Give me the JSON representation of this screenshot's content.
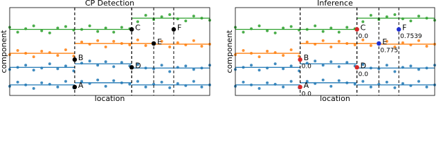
{
  "chart_data": [
    {
      "type": "scatter",
      "title": "CP Detection",
      "x_label": "location",
      "y_label": "component",
      "xlim": [
        0,
        100
      ],
      "ylim": [
        0,
        12.5
      ],
      "x": [
        0,
        4,
        8,
        12,
        16,
        20,
        24,
        28,
        32,
        36,
        40,
        44,
        48,
        52,
        56,
        60,
        64,
        68,
        72,
        76,
        80,
        84,
        88,
        92,
        96,
        100
      ],
      "series": [
        {
          "color": "#2ca02c",
          "values": [
            9.7,
            9.0,
            9.5,
            9.9,
            9.2,
            8.9,
            9.6,
            9.8,
            9.3,
            9.4,
            9.9,
            9.1,
            9.6,
            9.0,
            9.7,
            9.5,
            10.5,
            11.4,
            10.8,
            11.2,
            11.5,
            10.9,
            10.6,
            11.3,
            11.0,
            10.7
          ],
          "fit": [
            {
              "start": 0,
              "end": 61,
              "level": 9.4
            },
            {
              "start": 61,
              "end": 100,
              "level": 11.0
            }
          ]
        },
        {
          "color": "#ff7f0e",
          "values": [
            5.8,
            6.4,
            6.0,
            5.5,
            6.3,
            6.1,
            5.7,
            6.5,
            5.6,
            7.6,
            7.3,
            7.8,
            6.9,
            7.7,
            7.4,
            7.2,
            7.9,
            7.1,
            7.4,
            7.7,
            6.9,
            7.5,
            7.2,
            7.8,
            7.0,
            7.3
          ],
          "fit": [
            {
              "start": 0,
              "end": 32.5,
              "level": 6.0
            },
            {
              "start": 32.5,
              "end": 72,
              "level": 7.4
            },
            {
              "start": 72,
              "end": 100,
              "level": 7.3
            }
          ]
        },
        {
          "color": "#1f77b4",
          "values": [
            3.7,
            4.0,
            4.3,
            3.6,
            3.9,
            4.5,
            3.8,
            4.2,
            3.5,
            4.6,
            4.9,
            4.3,
            4.8,
            4.1,
            4.7,
            4.2,
            4.4,
            3.9,
            3.8,
            4.3,
            3.4,
            4.0,
            4.2,
            3.7,
            3.9,
            4.3
          ],
          "fit": [
            {
              "start": 0,
              "end": 32.5,
              "level": 4.0
            },
            {
              "start": 32.5,
              "end": 61,
              "level": 4.5
            },
            {
              "start": 61,
              "end": 100,
              "level": 3.9
            }
          ]
        },
        {
          "color": "#1f77b4",
          "values": [
            1.3,
            1.9,
            1.5,
            1.0,
            1.8,
            1.6,
            1.2,
            2.0,
            1.1,
            2.0,
            1.7,
            2.2,
            1.3,
            2.1,
            1.8,
            1.6,
            2.0,
            1.2,
            1.6,
            1.9,
            1.1,
            1.7,
            1.4,
            2.0,
            1.2,
            1.5
          ],
          "fit": [
            {
              "start": 0,
              "end": 32.5,
              "level": 1.5
            },
            {
              "start": 32.5,
              "end": 61,
              "level": 1.8
            },
            {
              "start": 61,
              "end": 100,
              "level": 1.5
            }
          ]
        }
      ],
      "changepoints": [
        {
          "label": "A",
          "x": 32.5,
          "y": 1.2,
          "color": "#000000"
        },
        {
          "label": "B",
          "x": 32.5,
          "y": 5.1,
          "color": "#000000"
        },
        {
          "label": "C",
          "x": 61,
          "y": 9.4,
          "color": "#000000"
        },
        {
          "label": "D",
          "x": 61,
          "y": 4.0,
          "color": "#000000"
        },
        {
          "label": "E",
          "x": 72,
          "y": 7.4,
          "color": "#000000"
        },
        {
          "label": "F",
          "x": 82,
          "y": 9.4,
          "color": "#000000"
        }
      ]
    },
    {
      "type": "scatter",
      "title": "Inference",
      "x_label": "location",
      "y_label": "component",
      "xlim": [
        0,
        100
      ],
      "ylim": [
        0,
        12.5
      ],
      "x": [
        0,
        4,
        8,
        12,
        16,
        20,
        24,
        28,
        32,
        36,
        40,
        44,
        48,
        52,
        56,
        60,
        64,
        68,
        72,
        76,
        80,
        84,
        88,
        92,
        96,
        100
      ],
      "series": [
        {
          "color": "#2ca02c",
          "values": [
            9.7,
            9.0,
            9.5,
            9.9,
            9.2,
            8.9,
            9.6,
            9.8,
            9.3,
            9.4,
            9.9,
            9.1,
            9.6,
            9.0,
            9.7,
            9.5,
            10.5,
            11.4,
            10.8,
            11.2,
            11.5,
            10.9,
            10.6,
            11.3,
            11.0,
            10.7
          ],
          "fit": [
            {
              "start": 0,
              "end": 61,
              "level": 9.4
            },
            {
              "start": 61,
              "end": 100,
              "level": 11.0
            }
          ]
        },
        {
          "color": "#ff7f0e",
          "values": [
            5.8,
            6.4,
            6.0,
            5.5,
            6.3,
            6.1,
            5.7,
            6.5,
            5.6,
            7.6,
            7.3,
            7.8,
            6.9,
            7.7,
            7.4,
            7.2,
            7.9,
            7.1,
            7.4,
            7.7,
            6.9,
            7.5,
            7.2,
            7.8,
            7.0,
            7.3
          ],
          "fit": [
            {
              "start": 0,
              "end": 32.5,
              "level": 6.0
            },
            {
              "start": 32.5,
              "end": 72,
              "level": 7.4
            },
            {
              "start": 72,
              "end": 100,
              "level": 7.3
            }
          ]
        },
        {
          "color": "#1f77b4",
          "values": [
            3.7,
            4.0,
            4.3,
            3.6,
            3.9,
            4.5,
            3.8,
            4.2,
            3.5,
            4.6,
            4.9,
            4.3,
            4.8,
            4.1,
            4.7,
            4.2,
            4.4,
            3.9,
            3.8,
            4.3,
            3.4,
            4.0,
            4.2,
            3.7,
            3.9,
            4.3
          ],
          "fit": [
            {
              "start": 0,
              "end": 32.5,
              "level": 4.0
            },
            {
              "start": 32.5,
              "end": 61,
              "level": 4.5
            },
            {
              "start": 61,
              "end": 100,
              "level": 3.9
            }
          ]
        },
        {
          "color": "#1f77b4",
          "values": [
            1.3,
            1.9,
            1.5,
            1.0,
            1.8,
            1.6,
            1.2,
            2.0,
            1.1,
            2.0,
            1.7,
            2.2,
            1.3,
            2.1,
            1.8,
            1.6,
            2.0,
            1.2,
            1.6,
            1.9,
            1.1,
            1.7,
            1.4,
            2.0,
            1.2,
            1.5
          ],
          "fit": [
            {
              "start": 0,
              "end": 32.5,
              "level": 1.5
            },
            {
              "start": 32.5,
              "end": 61,
              "level": 1.8
            },
            {
              "start": 61,
              "end": 100,
              "level": 1.5
            }
          ]
        }
      ],
      "changepoints": [
        {
          "label": "A",
          "x": 32.5,
          "y": 1.2,
          "color": "#d62728",
          "score": 0.0,
          "score_label": "0.0"
        },
        {
          "label": "B",
          "x": 32.5,
          "y": 5.1,
          "color": "#d62728",
          "score": 0.0,
          "score_label": "0.0"
        },
        {
          "label": "C",
          "x": 61,
          "y": 9.4,
          "color": "#d62728",
          "score": 0.0,
          "score_label": "0.0"
        },
        {
          "label": "D",
          "x": 61,
          "y": 4.0,
          "color": "#d62728",
          "score": 0.0,
          "score_label": "0.0"
        },
        {
          "label": "E",
          "x": 72,
          "y": 7.4,
          "color": "#2030d0",
          "score": 0.775,
          "score_label": "0.775"
        },
        {
          "label": "F",
          "x": 82,
          "y": 9.4,
          "color": "#2030d0",
          "score": 0.7539,
          "score_label": "0.7539"
        }
      ]
    }
  ]
}
